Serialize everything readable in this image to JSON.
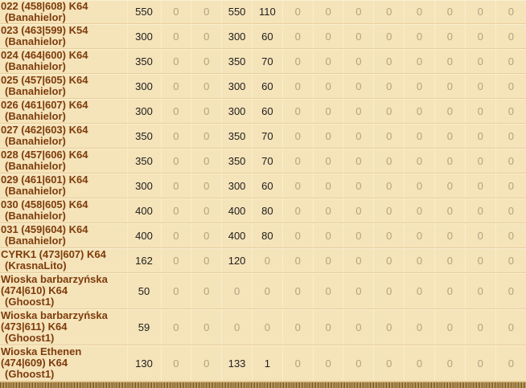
{
  "colors": {
    "background": "#f5e3ba",
    "village_name": "#7d3c0c",
    "number": "#21201d",
    "zero_number": "#b3a27e",
    "row_divider": "#e7cd9b",
    "column_divider": "#f9eecb",
    "bottom_bar_brown": "#8a6a38"
  },
  "table": {
    "column_count": 13,
    "rows": [
      {
        "name": "022 (458|608) K64",
        "owner": "(Banahielor)",
        "lines": 2,
        "values": [
          550,
          0,
          0,
          550,
          110,
          0,
          0,
          0,
          0,
          0,
          0,
          0,
          0
        ]
      },
      {
        "name": "023 (463|599) K54",
        "owner": "(Banahielor)",
        "lines": 2,
        "values": [
          300,
          0,
          0,
          300,
          60,
          0,
          0,
          0,
          0,
          0,
          0,
          0,
          0
        ]
      },
      {
        "name": "024 (464|600) K64",
        "owner": "(Banahielor)",
        "lines": 2,
        "values": [
          350,
          0,
          0,
          350,
          70,
          0,
          0,
          0,
          0,
          0,
          0,
          0,
          0
        ]
      },
      {
        "name": "025 (457|605) K64",
        "owner": "(Banahielor)",
        "lines": 2,
        "values": [
          300,
          0,
          0,
          300,
          60,
          0,
          0,
          0,
          0,
          0,
          0,
          0,
          0
        ]
      },
      {
        "name": "026 (461|607) K64",
        "owner": "(Banahielor)",
        "lines": 2,
        "values": [
          300,
          0,
          0,
          300,
          60,
          0,
          0,
          0,
          0,
          0,
          0,
          0,
          0
        ]
      },
      {
        "name": "027 (462|603) K64",
        "owner": "(Banahielor)",
        "lines": 2,
        "values": [
          350,
          0,
          0,
          350,
          70,
          0,
          0,
          0,
          0,
          0,
          0,
          0,
          0
        ]
      },
      {
        "name": "028 (457|606) K64",
        "owner": "(Banahielor)",
        "lines": 2,
        "values": [
          350,
          0,
          0,
          350,
          70,
          0,
          0,
          0,
          0,
          0,
          0,
          0,
          0
        ]
      },
      {
        "name": "029 (461|601) K64",
        "owner": "(Banahielor)",
        "lines": 2,
        "values": [
          300,
          0,
          0,
          300,
          60,
          0,
          0,
          0,
          0,
          0,
          0,
          0,
          0
        ]
      },
      {
        "name": "030 (458|605) K64",
        "owner": "(Banahielor)",
        "lines": 2,
        "values": [
          400,
          0,
          0,
          400,
          80,
          0,
          0,
          0,
          0,
          0,
          0,
          0,
          0
        ]
      },
      {
        "name": "031 (459|604) K64",
        "owner": "(Banahielor)",
        "lines": 2,
        "values": [
          400,
          0,
          0,
          400,
          80,
          0,
          0,
          0,
          0,
          0,
          0,
          0,
          0
        ]
      },
      {
        "name": "CYRK1 (473|607) K64",
        "owner": "(KrasnaLito)",
        "lines": 2,
        "values": [
          162,
          0,
          0,
          120,
          0,
          0,
          0,
          0,
          0,
          0,
          0,
          0,
          0
        ]
      },
      {
        "name": "Wioska barbarzyńska (474|610) K64",
        "owner": "(Ghoost1)",
        "lines": 3,
        "values": [
          50,
          0,
          0,
          0,
          0,
          0,
          0,
          0,
          0,
          0,
          0,
          0,
          0
        ]
      },
      {
        "name": "Wioska barbarzyńska (473|611) K64",
        "owner": "(Ghoost1)",
        "lines": 3,
        "values": [
          59,
          0,
          0,
          0,
          0,
          0,
          0,
          0,
          0,
          0,
          0,
          0,
          0
        ]
      },
      {
        "name": "Wioska Ethenen (474|609) K64",
        "owner": "(Ghoost1)",
        "lines": 3,
        "values": [
          130,
          0,
          0,
          133,
          1,
          0,
          0,
          0,
          0,
          0,
          0,
          0,
          0
        ]
      }
    ]
  }
}
